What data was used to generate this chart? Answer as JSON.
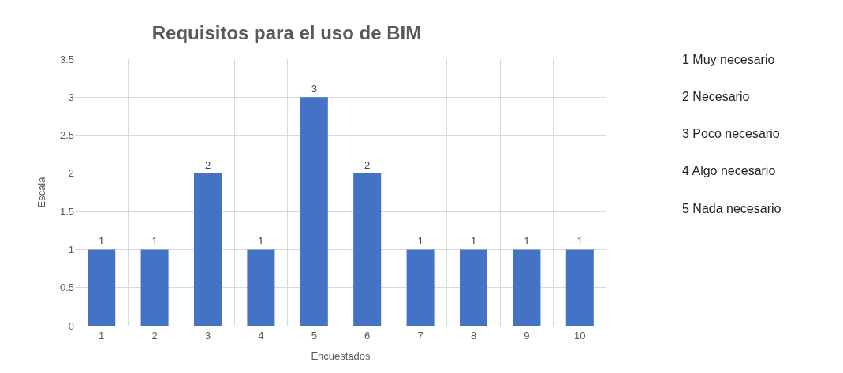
{
  "chart_data": {
    "type": "bar",
    "title": "Requisitos para el uso de BIM",
    "xlabel": "Encuestados",
    "ylabel": "Escala",
    "categories": [
      "1",
      "2",
      "3",
      "4",
      "5",
      "6",
      "7",
      "8",
      "9",
      "10"
    ],
    "values": [
      1,
      1,
      2,
      1,
      3,
      2,
      1,
      1,
      1,
      1
    ],
    "color": "#4472c4",
    "ylim": [
      0,
      3.5
    ],
    "yticks": [
      0,
      0.5,
      1,
      1.5,
      2,
      2.5,
      3,
      3.5
    ],
    "grid": true,
    "data_labels": true,
    "annotations": [
      "1 Muy necesario",
      "2 Necesario",
      "3 Poco necesario",
      "4 Algo necesario",
      "5 Nada necesario"
    ]
  }
}
